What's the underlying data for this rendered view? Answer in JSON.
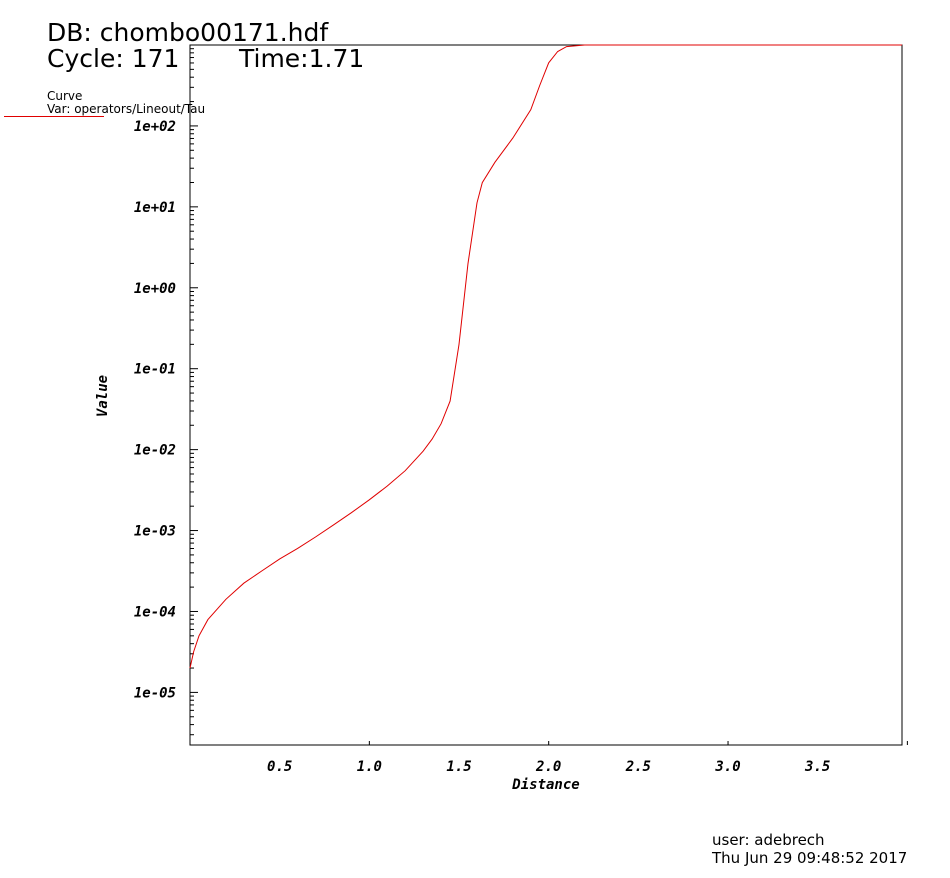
{
  "header": {
    "db": "DB: chombo00171.hdf",
    "cycle": "Cycle: 171",
    "time": "Time:1.71"
  },
  "legend": {
    "title": "Curve",
    "var": "Var: operators/Lineout/Tau",
    "color": "#e00000"
  },
  "footer": {
    "user": "user: adebrech",
    "date": "Thu Jun 29 09:48:52 2017"
  },
  "chart_data": {
    "type": "line",
    "xlabel": "Distance",
    "ylabel": "Value",
    "xlim": [
      0.0,
      3.97
    ],
    "ylim_log10": [
      -5.65,
      3.0
    ],
    "yscale": "log",
    "x_ticks": [
      "0.5",
      "1.0",
      "1.5",
      "2.0",
      "2.5",
      "3.0",
      "3.5"
    ],
    "x_tick_values": [
      0.5,
      1.0,
      1.5,
      2.0,
      2.5,
      3.0,
      3.5
    ],
    "y_ticks": [
      "1e-05",
      "1e-04",
      "1e-03",
      "1e-02",
      "1e-01",
      "1e+00",
      "1e+01",
      "1e+02"
    ],
    "y_tick_values": [
      -5,
      -4,
      -3,
      -2,
      -1,
      0,
      1,
      2
    ],
    "series": [
      {
        "color": "#e00000",
        "x": [
          0.0,
          0.02,
          0.05,
          0.1,
          0.2,
          0.3,
          0.4,
          0.5,
          0.6,
          0.7,
          0.8,
          0.9,
          1.0,
          1.1,
          1.2,
          1.3,
          1.35,
          1.4,
          1.45,
          1.5,
          1.55,
          1.6,
          1.63,
          1.7,
          1.8,
          1.9,
          1.95,
          2.0,
          2.05,
          2.1,
          2.2,
          2.3,
          2.5,
          3.0,
          3.5,
          3.97
        ],
        "y_log10": [
          -4.7,
          -4.5,
          -4.3,
          -4.1,
          -3.85,
          -3.65,
          -3.5,
          -3.35,
          -3.22,
          -3.08,
          -2.93,
          -2.78,
          -2.62,
          -2.45,
          -2.26,
          -2.02,
          -1.87,
          -1.68,
          -1.4,
          -0.7,
          0.3,
          1.05,
          1.3,
          1.55,
          1.85,
          2.2,
          2.5,
          2.78,
          2.92,
          2.98,
          3.0,
          3.0,
          3.0,
          3.0,
          3.0,
          3.0
        ]
      }
    ]
  }
}
